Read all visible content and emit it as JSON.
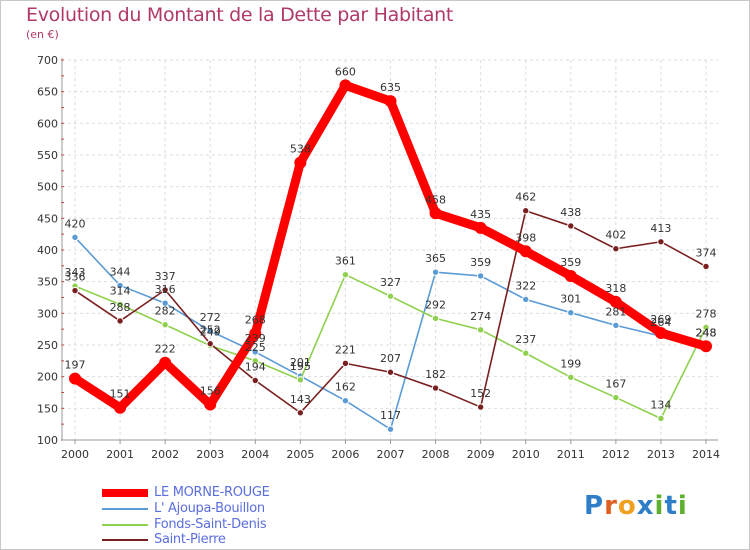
{
  "title": "Evolution du Montant de la Dette par Habitant",
  "subtitle": "(en €)",
  "logo": {
    "letters": [
      "P",
      "r",
      "o",
      "x",
      "i",
      "t",
      "i"
    ],
    "colors": [
      "#2f7fc8",
      "#e06020",
      "#f0a020",
      "#2f7fc8",
      "#60b030",
      "#2f7fc8",
      "#60b030"
    ]
  },
  "chart_data": {
    "type": "line",
    "x": [
      2000,
      2001,
      2002,
      2003,
      2004,
      2005,
      2006,
      2007,
      2008,
      2009,
      2010,
      2011,
      2012,
      2013,
      2014
    ],
    "ylim": [
      100,
      700
    ],
    "yticks": [
      100,
      150,
      200,
      250,
      300,
      350,
      400,
      450,
      500,
      550,
      600,
      650,
      700
    ],
    "grid": true,
    "legend_position": "bottom-left",
    "series": [
      {
        "name": "LE MORNE-ROUGE",
        "color": "#ff0000",
        "values": [
          197,
          151,
          222,
          156,
          268,
          538,
          660,
          635,
          458,
          435,
          398,
          359,
          318,
          269,
          248
        ]
      },
      {
        "name": "L' Ajoupa-Bouillon",
        "color": "#5b9bd5",
        "values": [
          420,
          344,
          316,
          272,
          239,
          201,
          162,
          117,
          365,
          359,
          322,
          301,
          281,
          264,
          248
        ]
      },
      {
        "name": "Fonds-Saint-Denis",
        "color": "#8fd14f",
        "values": [
          343,
          314,
          282,
          249,
          225,
          195,
          361,
          327,
          292,
          274,
          237,
          199,
          167,
          134,
          278
        ]
      },
      {
        "name": "Saint-Pierre",
        "color": "#7a1f1f",
        "values": [
          336,
          288,
          337,
          252,
          194,
          143,
          221,
          207,
          182,
          152,
          462,
          438,
          402,
          413,
          374
        ]
      }
    ]
  }
}
